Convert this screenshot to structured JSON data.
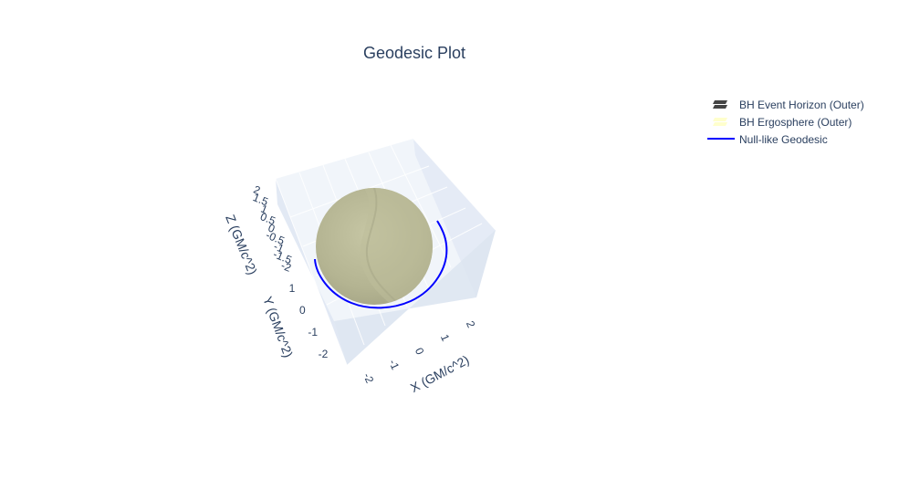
{
  "chart_data": {
    "type": "3d-surface+line",
    "title": "Geodesic Plot",
    "scene": {
      "xaxis": {
        "title": "X (GM/c^2)",
        "ticks": [
          "-2",
          "-1",
          "0",
          "1",
          "2"
        ],
        "range": [
          -2.5,
          2.5
        ]
      },
      "yaxis": {
        "title": "Y (GM/c^2)",
        "ticks": [
          "-2",
          "-1",
          "0",
          "1"
        ],
        "range": [
          -2.5,
          2.5
        ]
      },
      "zaxis": {
        "title": "Z (GM/c^2)",
        "ticks": [
          "-2",
          "-1.5",
          "-1",
          "-0.5",
          "0",
          "0.5",
          "1",
          "1.5",
          "2"
        ],
        "range": [
          -2.5,
          2.5
        ]
      },
      "grid": true,
      "background": "#e5ecf6"
    },
    "legend": {
      "placement": "top-right",
      "entries": [
        {
          "name": "BH Event Horizon (Outer)",
          "type": "surface",
          "color": "#444444"
        },
        {
          "name": "BH Ergosphere (Outer)",
          "type": "surface",
          "color": "#ffffcc"
        },
        {
          "name": "Null-like Geodesic",
          "type": "line",
          "color": "#0000ff"
        }
      ]
    },
    "series": [
      {
        "name": "BH Event Horizon (Outer)",
        "type": "sphere",
        "radius": 1.9,
        "color": "#b0b08e"
      },
      {
        "name": "BH Ergosphere (Outer)",
        "type": "sphere",
        "radius": 2.0,
        "color": "#ffffcc"
      },
      {
        "name": "Null-like Geodesic",
        "type": "line",
        "color": "#0000ff",
        "path": "arc around the horizon in the equatorial region, from about x=-2.3 to x=2.2"
      }
    ]
  }
}
